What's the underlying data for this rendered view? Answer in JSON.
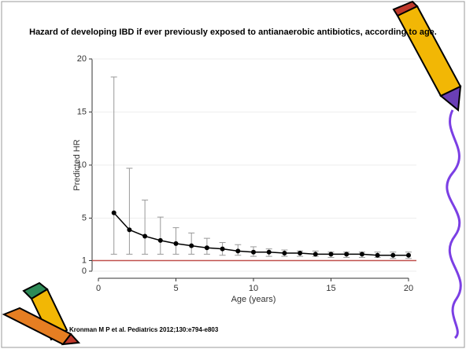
{
  "chart_data": {
    "type": "line",
    "title": "Hazard of developing IBD if ever previously exposed to antianaerobic antibiotics, according to age.",
    "x_label": "Age (years)",
    "y_label": "Predicted HR",
    "x": [
      1,
      2,
      3,
      4,
      5,
      6,
      7,
      8,
      9,
      10,
      11,
      12,
      13,
      14,
      15,
      16,
      17,
      18,
      19,
      20
    ],
    "series": [
      {
        "color": "#000000",
        "values": [
          5.5,
          3.9,
          3.3,
          2.9,
          2.6,
          2.4,
          2.2,
          2.1,
          1.9,
          1.8,
          1.8,
          1.7,
          1.7,
          1.6,
          1.6,
          1.6,
          1.6,
          1.5,
          1.5,
          1.5
        ],
        "lower": [
          1.6,
          1.6,
          1.6,
          1.6,
          1.6,
          1.6,
          1.6,
          1.5,
          1.5,
          1.4,
          1.4,
          1.4,
          1.4,
          1.4,
          1.3,
          1.3,
          1.3,
          1.3,
          1.2,
          1.2
        ],
        "upper": [
          18.3,
          9.7,
          6.7,
          5.1,
          4.1,
          3.6,
          3.1,
          2.7,
          2.5,
          2.3,
          2.1,
          2.0,
          1.9,
          1.9,
          1.8,
          1.8,
          1.8,
          1.8,
          1.8,
          1.8
        ]
      }
    ],
    "error_bar_color": "#999999",
    "reference_line": {
      "value": 1,
      "color": "#c0504d"
    },
    "xlim": [
      0,
      20
    ],
    "xticks": [
      0,
      5,
      10,
      15,
      20
    ],
    "ylim": [
      0,
      20
    ],
    "yticks": [
      0,
      1,
      5,
      10,
      15,
      20
    ],
    "grid": true
  },
  "citation": "Kronman M P et al. Pediatrics 2012;130:e794-e803"
}
